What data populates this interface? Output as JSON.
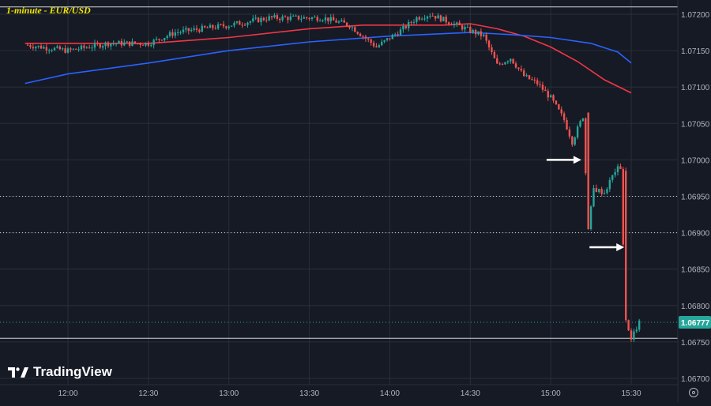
{
  "title": "1-minute - EUR/USD",
  "brand": {
    "name": "TradingView"
  },
  "colors": {
    "background": "#161a25",
    "grid": "#2a2e39",
    "up": "#26a69a",
    "down": "#ef5350",
    "ema_red": "#f23645",
    "ema_blue": "#2962ff",
    "arrow": "#ffffff",
    "price_label_bg": "#26a69a"
  },
  "chart_data": {
    "type": "candlestick",
    "instrument": "EUR/USD",
    "timeframe": "1-minute",
    "xlim": [
      "11:44",
      "15:44"
    ],
    "ylim": [
      1.067,
      1.0721
    ],
    "x_ticks": [
      "12:00",
      "12:30",
      "13:00",
      "13:30",
      "14:00",
      "14:30",
      "15:00",
      "15:30"
    ],
    "y_ticks": [
      "1.07200",
      "1.07150",
      "1.07100",
      "1.07050",
      "1.07000",
      "1.06950",
      "1.06900",
      "1.06850",
      "1.06800",
      "1.06750",
      "1.06700"
    ],
    "last_price": "1.06777",
    "horizontal_lines": [
      {
        "price": 1.0721,
        "style": "solid"
      },
      {
        "price": 1.0695,
        "style": "dotted"
      },
      {
        "price": 1.069,
        "style": "dotted"
      },
      {
        "price": 1.06777,
        "style": "dotted"
      },
      {
        "price": 1.06755,
        "style": "solid"
      }
    ],
    "series": [
      {
        "name": "",
        "type": "line",
        "color": "#f23645",
        "points": [
          [
            "11:44",
            1.0716
          ],
          [
            "12:00",
            1.0716
          ],
          [
            "12:30",
            1.0716
          ],
          [
            "13:00",
            1.07168
          ],
          [
            "13:30",
            1.0718
          ],
          [
            "13:50",
            1.07185
          ],
          [
            "14:00",
            1.07185
          ],
          [
            "14:20",
            1.07185
          ],
          [
            "14:30",
            1.07187
          ],
          [
            "14:40",
            1.0718
          ],
          [
            "14:50",
            1.0717
          ],
          [
            "15:00",
            1.07155
          ],
          [
            "15:10",
            1.07135
          ],
          [
            "15:20",
            1.0711
          ],
          [
            "15:30",
            1.07092
          ]
        ]
      },
      {
        "name": "",
        "type": "line",
        "color": "#2962ff",
        "points": [
          [
            "11:44",
            1.07105
          ],
          [
            "12:00",
            1.07118
          ],
          [
            "12:30",
            1.07133
          ],
          [
            "13:00",
            1.0715
          ],
          [
            "13:30",
            1.07162
          ],
          [
            "14:00",
            1.0717
          ],
          [
            "14:30",
            1.07175
          ],
          [
            "14:45",
            1.07172
          ],
          [
            "15:00",
            1.07168
          ],
          [
            "15:15",
            1.0716
          ],
          [
            "15:25",
            1.07148
          ],
          [
            "15:30",
            1.07133
          ]
        ]
      }
    ],
    "candles_ohlc_keypoints": [
      [
        "11:44",
        1.07158
      ],
      [
        "12:00",
        1.0715
      ],
      [
        "12:15",
        1.0716
      ],
      [
        "12:30",
        1.0716
      ],
      [
        "12:40",
        1.07175
      ],
      [
        "13:00",
        1.07185
      ],
      [
        "13:15",
        1.07195
      ],
      [
        "13:35",
        1.07195
      ],
      [
        "13:45",
        1.07185
      ],
      [
        "13:55",
        1.07155
      ],
      [
        "14:05",
        1.0718
      ],
      [
        "14:10",
        1.07195
      ],
      [
        "14:15",
        1.072
      ],
      [
        "14:25",
        1.07185
      ],
      [
        "14:35",
        1.0717
      ],
      [
        "14:40",
        1.0713
      ],
      [
        "14:45",
        1.0714
      ],
      [
        "14:50",
        1.07115
      ],
      [
        "14:55",
        1.07105
      ],
      [
        "15:00",
        1.07085
      ],
      [
        "15:05",
        1.07055
      ],
      [
        "15:08",
        1.07025
      ],
      [
        "15:12",
        1.0706
      ],
      [
        "15:14",
        1.06905
      ],
      [
        "15:16",
        1.0696
      ],
      [
        "15:20",
        1.06955
      ],
      [
        "15:24",
        1.06985
      ],
      [
        "15:26",
        1.0699
      ],
      [
        "15:28",
        1.0678
      ],
      [
        "15:30",
        1.06755
      ],
      [
        "15:33",
        1.06777
      ]
    ],
    "annotations": [
      {
        "type": "arrow",
        "direction": "right",
        "time": "15:12",
        "price": 1.07
      },
      {
        "type": "arrow",
        "direction": "right",
        "time": "15:28",
        "price": 1.0688
      }
    ]
  }
}
